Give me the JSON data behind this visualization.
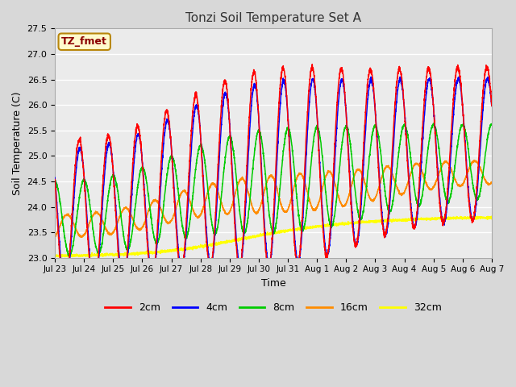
{
  "title": "Tonzi Soil Temperature Set A",
  "xlabel": "Time",
  "ylabel": "Soil Temperature (C)",
  "ylim": [
    23.0,
    27.5
  ],
  "annotation_text": "TZ_fmet",
  "annotation_color": "#8B0000",
  "annotation_bg": "#FFFACD",
  "annotation_border": "#B8860B",
  "colors": {
    "2cm": "#FF0000",
    "4cm": "#0000FF",
    "8cm": "#00CC00",
    "16cm": "#FF8C00",
    "32cm": "#FFFF00"
  },
  "bg_color": "#D8D8D8",
  "plot_bg_color": "#EBEBEB",
  "grid_color": "#FFFFFF",
  "xtick_labels": [
    "Jul 23",
    "Jul 24",
    "Jul 25",
    "Jul 26",
    "Jul 27",
    "Jul 28",
    "Jul 29",
    "Jul 30",
    "Jul 31",
    "Aug 1",
    "Aug 2",
    "Aug 3",
    "Aug 4",
    "Aug 5",
    "Aug 6",
    "Aug 7"
  ],
  "xtick_positions": [
    0,
    24,
    48,
    72,
    96,
    120,
    144,
    168,
    192,
    216,
    240,
    264,
    288,
    312,
    336,
    360
  ],
  "ytick_labels": [
    "23.0",
    "23.5",
    "24.0",
    "24.5",
    "25.0",
    "25.5",
    "26.0",
    "26.5",
    "27.0",
    "27.5"
  ],
  "ytick_positions": [
    23.0,
    23.5,
    24.0,
    24.5,
    25.0,
    25.5,
    26.0,
    26.5,
    27.0,
    27.5
  ]
}
